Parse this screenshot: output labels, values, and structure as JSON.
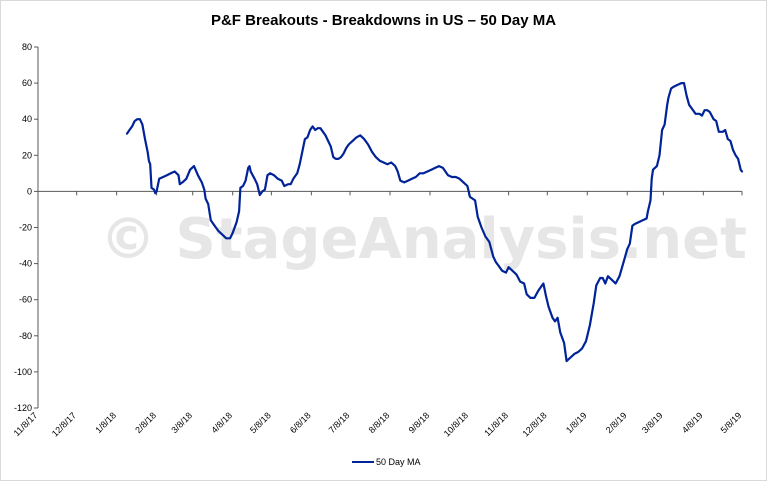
{
  "chart_data": {
    "type": "line",
    "title": "P&F Breakouts - Breakdowns in US – 50 Day MA",
    "watermark": "© StageAnalysis.net",
    "xlabel": "",
    "ylabel": "",
    "ylim": [
      -120,
      80
    ],
    "yticks": [
      80,
      60,
      40,
      20,
      0,
      -20,
      -40,
      -60,
      -80,
      -100,
      -120
    ],
    "xlim": [
      "2017-11-08",
      "2019-05-08"
    ],
    "xtick_labels": [
      "11/8/17",
      "12/8/17",
      "1/8/18",
      "2/8/18",
      "3/8/18",
      "4/8/18",
      "5/8/18",
      "6/8/18",
      "7/8/18",
      "8/8/18",
      "9/8/18",
      "10/8/18",
      "11/8/18",
      "12/8/18",
      "1/8/19",
      "2/8/19",
      "3/8/19",
      "4/8/19",
      "5/8/19"
    ],
    "xtick_dates": [
      "2017-11-08",
      "2017-12-08",
      "2018-01-08",
      "2018-02-08",
      "2018-03-08",
      "2018-04-08",
      "2018-05-08",
      "2018-06-08",
      "2018-07-08",
      "2018-08-08",
      "2018-09-08",
      "2018-10-08",
      "2018-11-08",
      "2018-12-08",
      "2019-01-08",
      "2019-02-08",
      "2019-03-08",
      "2019-04-08",
      "2019-05-08"
    ],
    "grid": false,
    "legend_position": "bottom",
    "series": [
      {
        "name": "50 Day MA",
        "color": "#002398",
        "points": [
          [
            "2018-01-16",
            32
          ],
          [
            "2018-01-18",
            34
          ],
          [
            "2018-01-20",
            36
          ],
          [
            "2018-01-22",
            39
          ],
          [
            "2018-01-24",
            40
          ],
          [
            "2018-01-26",
            40
          ],
          [
            "2018-01-28",
            37
          ],
          [
            "2018-01-30",
            29
          ],
          [
            "2018-02-01",
            22
          ],
          [
            "2018-02-02",
            17
          ],
          [
            "2018-02-03",
            15
          ],
          [
            "2018-02-04",
            2
          ],
          [
            "2018-02-06",
            1
          ],
          [
            "2018-02-07",
            -1
          ],
          [
            "2018-02-08",
            0
          ],
          [
            "2018-02-10",
            7
          ],
          [
            "2018-02-13",
            8
          ],
          [
            "2018-02-16",
            9
          ],
          [
            "2018-02-19",
            10
          ],
          [
            "2018-02-22",
            11
          ],
          [
            "2018-02-25",
            9
          ],
          [
            "2018-02-26",
            4
          ],
          [
            "2018-02-28",
            5
          ],
          [
            "2018-03-03",
            7
          ],
          [
            "2018-03-06",
            12
          ],
          [
            "2018-03-09",
            14
          ],
          [
            "2018-03-12",
            9
          ],
          [
            "2018-03-15",
            5
          ],
          [
            "2018-03-17",
            1
          ],
          [
            "2018-03-18",
            -4
          ],
          [
            "2018-03-20",
            -7
          ],
          [
            "2018-03-22",
            -16
          ],
          [
            "2018-03-25",
            -19
          ],
          [
            "2018-03-28",
            -22
          ],
          [
            "2018-03-31",
            -24
          ],
          [
            "2018-04-03",
            -26
          ],
          [
            "2018-04-06",
            -26
          ],
          [
            "2018-04-08",
            -23
          ],
          [
            "2018-04-11",
            -17
          ],
          [
            "2018-04-13",
            -11
          ],
          [
            "2018-04-14",
            2
          ],
          [
            "2018-04-16",
            3
          ],
          [
            "2018-04-18",
            6
          ],
          [
            "2018-04-20",
            13
          ],
          [
            "2018-04-21",
            14
          ],
          [
            "2018-04-22",
            11
          ],
          [
            "2018-04-25",
            7
          ],
          [
            "2018-04-27",
            4
          ],
          [
            "2018-04-29",
            -2
          ],
          [
            "2018-05-01",
            0
          ],
          [
            "2018-05-03",
            1
          ],
          [
            "2018-05-05",
            9
          ],
          [
            "2018-05-07",
            10
          ],
          [
            "2018-05-10",
            9
          ],
          [
            "2018-05-13",
            7
          ],
          [
            "2018-05-16",
            6
          ],
          [
            "2018-05-18",
            3
          ],
          [
            "2018-05-21",
            4
          ],
          [
            "2018-05-23",
            4
          ],
          [
            "2018-05-25",
            7
          ],
          [
            "2018-05-28",
            10
          ],
          [
            "2018-05-30",
            15
          ],
          [
            "2018-06-01",
            22
          ],
          [
            "2018-06-03",
            29
          ],
          [
            "2018-06-05",
            30
          ],
          [
            "2018-06-07",
            34
          ],
          [
            "2018-06-09",
            36
          ],
          [
            "2018-06-11",
            34
          ],
          [
            "2018-06-13",
            35
          ],
          [
            "2018-06-15",
            35
          ],
          [
            "2018-06-17",
            33
          ],
          [
            "2018-06-19",
            31
          ],
          [
            "2018-06-21",
            28
          ],
          [
            "2018-06-23",
            25
          ],
          [
            "2018-06-25",
            19
          ],
          [
            "2018-06-27",
            18
          ],
          [
            "2018-06-29",
            18
          ],
          [
            "2018-07-01",
            19
          ],
          [
            "2018-07-03",
            21
          ],
          [
            "2018-07-05",
            24
          ],
          [
            "2018-07-07",
            26
          ],
          [
            "2018-07-10",
            28
          ],
          [
            "2018-07-13",
            30
          ],
          [
            "2018-07-16",
            31
          ],
          [
            "2018-07-19",
            29
          ],
          [
            "2018-07-22",
            26
          ],
          [
            "2018-07-25",
            22
          ],
          [
            "2018-07-28",
            19
          ],
          [
            "2018-07-31",
            17
          ],
          [
            "2018-08-03",
            16
          ],
          [
            "2018-08-06",
            15
          ],
          [
            "2018-08-09",
            16
          ],
          [
            "2018-08-12",
            14
          ],
          [
            "2018-08-14",
            11
          ],
          [
            "2018-08-16",
            6
          ],
          [
            "2018-08-19",
            5
          ],
          [
            "2018-08-22",
            6
          ],
          [
            "2018-08-25",
            7
          ],
          [
            "2018-08-28",
            8
          ],
          [
            "2018-08-31",
            10
          ],
          [
            "2018-09-03",
            10
          ],
          [
            "2018-09-06",
            11
          ],
          [
            "2018-09-09",
            12
          ],
          [
            "2018-09-12",
            13
          ],
          [
            "2018-09-15",
            14
          ],
          [
            "2018-09-18",
            13
          ],
          [
            "2018-09-20",
            11
          ],
          [
            "2018-09-22",
            9
          ],
          [
            "2018-09-25",
            8
          ],
          [
            "2018-09-28",
            8
          ],
          [
            "2018-10-01",
            7
          ],
          [
            "2018-10-04",
            5
          ],
          [
            "2018-10-07",
            3
          ],
          [
            "2018-10-09",
            -3
          ],
          [
            "2018-10-11",
            -4
          ],
          [
            "2018-10-13",
            -5
          ],
          [
            "2018-10-15",
            -14
          ],
          [
            "2018-10-18",
            -20
          ],
          [
            "2018-10-21",
            -25
          ],
          [
            "2018-10-24",
            -28
          ],
          [
            "2018-10-27",
            -36
          ],
          [
            "2018-10-29",
            -39
          ],
          [
            "2018-10-31",
            -41
          ],
          [
            "2018-11-03",
            -44
          ],
          [
            "2018-11-06",
            -45
          ],
          [
            "2018-11-08",
            -42
          ],
          [
            "2018-11-11",
            -44
          ],
          [
            "2018-11-14",
            -46
          ],
          [
            "2018-11-17",
            -50
          ],
          [
            "2018-11-20",
            -51
          ],
          [
            "2018-11-22",
            -57
          ],
          [
            "2018-11-25",
            -59
          ],
          [
            "2018-11-28",
            -59
          ],
          [
            "2018-12-01",
            -55
          ],
          [
            "2018-12-04",
            -52
          ],
          [
            "2018-12-05",
            -51
          ],
          [
            "2018-12-07",
            -58
          ],
          [
            "2018-12-09",
            -64
          ],
          [
            "2018-12-12",
            -70
          ],
          [
            "2018-12-14",
            -72
          ],
          [
            "2018-12-16",
            -70
          ],
          [
            "2018-12-18",
            -78
          ],
          [
            "2018-12-21",
            -84
          ],
          [
            "2018-12-23",
            -94
          ],
          [
            "2018-12-26",
            -92
          ],
          [
            "2018-12-29",
            -90
          ],
          [
            "2019-01-01",
            -89
          ],
          [
            "2019-01-04",
            -87
          ],
          [
            "2019-01-07",
            -83
          ],
          [
            "2019-01-10",
            -74
          ],
          [
            "2019-01-13",
            -62
          ],
          [
            "2019-01-15",
            -52
          ],
          [
            "2019-01-18",
            -48
          ],
          [
            "2019-01-20",
            -48
          ],
          [
            "2019-01-22",
            -51
          ],
          [
            "2019-01-24",
            -47
          ],
          [
            "2019-01-27",
            -49
          ],
          [
            "2019-01-30",
            -51
          ],
          [
            "2019-02-02",
            -47
          ],
          [
            "2019-02-04",
            -42
          ],
          [
            "2019-02-06",
            -37
          ],
          [
            "2019-02-08",
            -32
          ],
          [
            "2019-02-10",
            -29
          ],
          [
            "2019-02-12",
            -19
          ],
          [
            "2019-02-14",
            -18
          ],
          [
            "2019-02-17",
            -17
          ],
          [
            "2019-02-20",
            -16
          ],
          [
            "2019-02-23",
            -15
          ],
          [
            "2019-02-24",
            -11
          ],
          [
            "2019-02-26",
            -5
          ],
          [
            "2019-02-27",
            7
          ],
          [
            "2019-02-28",
            12
          ],
          [
            "2019-03-03",
            14
          ],
          [
            "2019-03-05",
            20
          ],
          [
            "2019-03-07",
            34
          ],
          [
            "2019-03-09",
            37
          ],
          [
            "2019-03-11",
            48
          ],
          [
            "2019-03-12",
            52
          ],
          [
            "2019-03-14",
            57
          ],
          [
            "2019-03-16",
            58
          ],
          [
            "2019-03-19",
            59
          ],
          [
            "2019-03-22",
            60
          ],
          [
            "2019-03-24",
            60
          ],
          [
            "2019-03-26",
            53
          ],
          [
            "2019-03-28",
            48
          ],
          [
            "2019-03-30",
            46
          ],
          [
            "2019-04-02",
            43
          ],
          [
            "2019-04-05",
            43
          ],
          [
            "2019-04-07",
            42
          ],
          [
            "2019-04-09",
            45
          ],
          [
            "2019-04-11",
            45
          ],
          [
            "2019-04-13",
            44
          ],
          [
            "2019-04-16",
            40
          ],
          [
            "2019-04-18",
            39
          ],
          [
            "2019-04-20",
            33
          ],
          [
            "2019-04-23",
            33
          ],
          [
            "2019-04-25",
            34
          ],
          [
            "2019-04-27",
            29
          ],
          [
            "2019-04-29",
            28
          ],
          [
            "2019-05-01",
            23
          ],
          [
            "2019-05-03",
            20
          ],
          [
            "2019-05-05",
            18
          ],
          [
            "2019-05-06",
            15
          ],
          [
            "2019-05-07",
            12
          ],
          [
            "2019-05-08",
            11
          ]
        ]
      }
    ]
  }
}
